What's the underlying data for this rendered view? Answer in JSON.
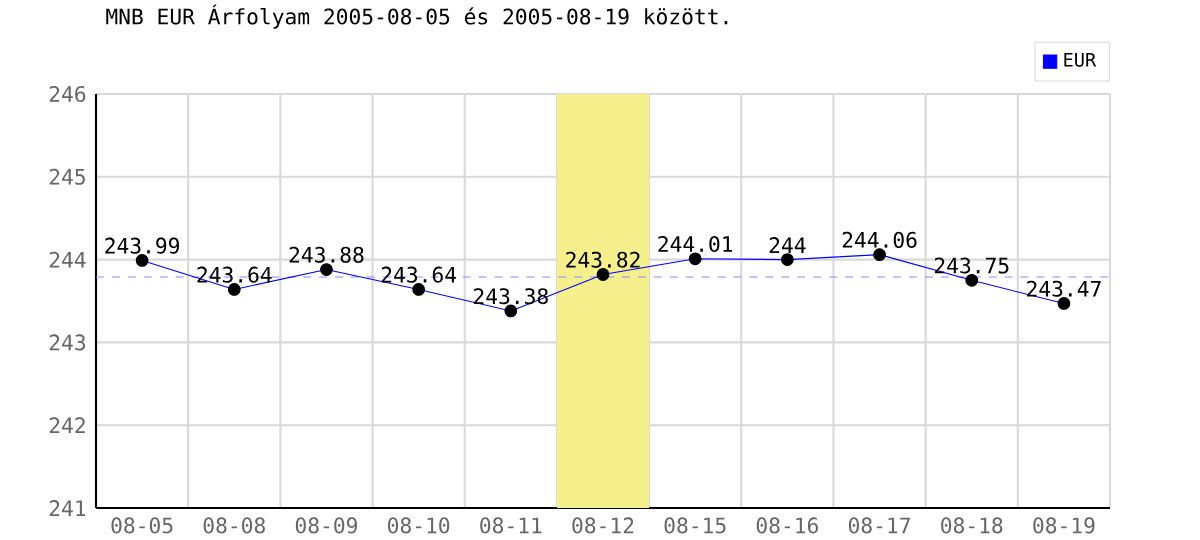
{
  "chart_data": {
    "type": "line",
    "title": "MNB EUR Árfolyam 2005-08-05 és 2005-08-19 között.",
    "categories": [
      "08-05",
      "08-08",
      "08-09",
      "08-10",
      "08-11",
      "08-12",
      "08-15",
      "08-16",
      "08-17",
      "08-18",
      "08-19"
    ],
    "series": [
      {
        "name": "EUR",
        "color": "#0000ff",
        "values": [
          243.99,
          243.64,
          243.88,
          243.64,
          243.38,
          243.82,
          244.01,
          244,
          244.06,
          243.75,
          243.47
        ]
      }
    ],
    "ylim": [
      241,
      246
    ],
    "yticks": [
      241,
      242,
      243,
      244,
      245,
      246
    ],
    "ref_lines": [
      {
        "axis": "y",
        "value": 243.79,
        "color": "#8888ff",
        "line_style": "dashed"
      }
    ],
    "bands": [
      {
        "axis": "x",
        "from": "08-12",
        "to": "08-12",
        "color": "#f5f08c"
      }
    ],
    "data_labels": true,
    "grid": true,
    "legend": "top right",
    "marker": "circle",
    "line_style": "solid"
  }
}
